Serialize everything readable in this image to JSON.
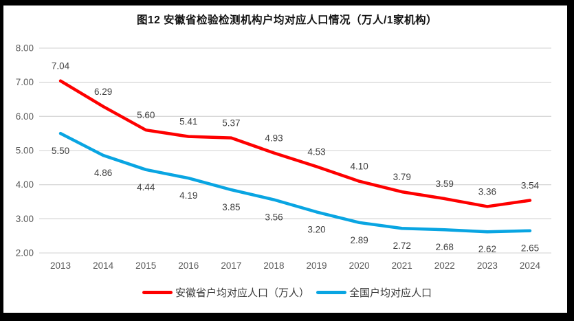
{
  "title": "图12 安徽省检验检测机构户均对应人口情况（万人/1家机构）",
  "legend": {
    "items": [
      {
        "label": "安徽省户均对应人口（万人）",
        "color": "#fe0000"
      },
      {
        "label": "全国户均对应人口",
        "color": "#09a5e2"
      }
    ]
  },
  "colors": {
    "gridline": "#d9d9d9",
    "axis_tick_label": "#595959",
    "data_label": "#404040",
    "frame_border": "#000000",
    "background": "#ffffff"
  },
  "chart_data": {
    "type": "line",
    "title": "图12 安徽省检验检测机构户均对应人口情况（万人/1家机构）",
    "categories": [
      "2013",
      "2014",
      "2015",
      "2016",
      "2017",
      "2018",
      "2019",
      "2020",
      "2021",
      "2022",
      "2023",
      "2024"
    ],
    "series": [
      {
        "name": "安徽省户均对应人口（万人）",
        "color": "#fe0000",
        "values": [
          7.04,
          6.29,
          5.6,
          5.41,
          5.37,
          4.93,
          4.53,
          4.1,
          3.79,
          3.59,
          3.36,
          3.54
        ],
        "label_position": "above"
      },
      {
        "name": "全国户均对应人口",
        "color": "#09a5e2",
        "values": [
          5.5,
          4.86,
          4.44,
          4.19,
          3.85,
          3.56,
          3.2,
          2.89,
          2.72,
          2.68,
          2.62,
          2.65
        ],
        "label_position": "below"
      }
    ],
    "ylim": [
      2.0,
      8.0
    ],
    "ytick_step": 1.0,
    "ytick_labels": [
      "2.00",
      "3.00",
      "4.00",
      "5.00",
      "6.00",
      "7.00",
      "8.00"
    ],
    "xlabel": "",
    "ylabel": "",
    "grid": "horizontal",
    "legend_position": "bottom",
    "data_labels_shown": true
  }
}
